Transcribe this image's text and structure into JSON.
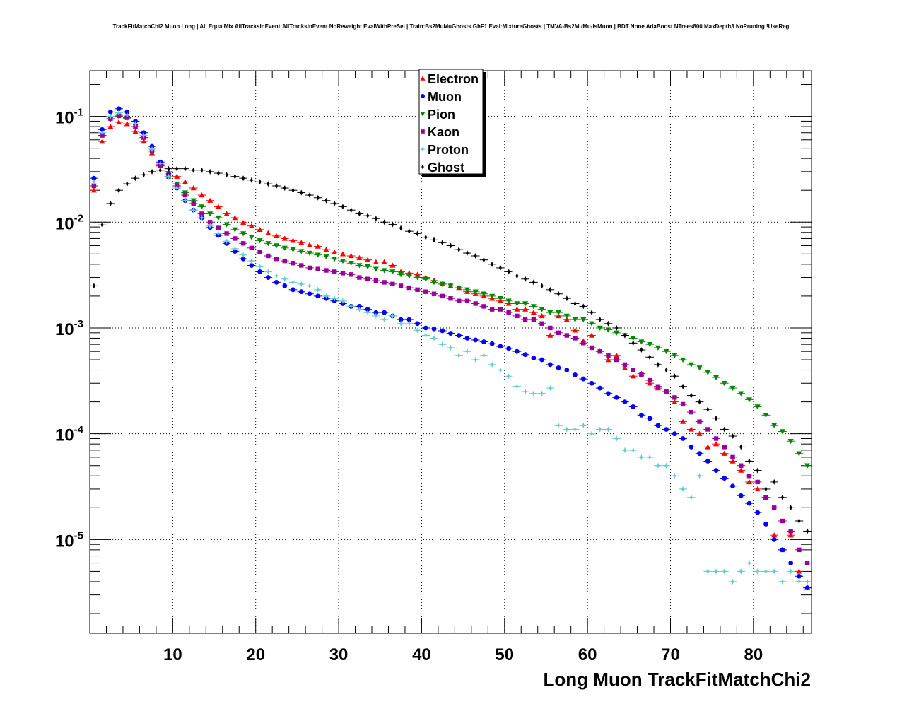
{
  "page_title": "TrackFitMatchChi2 Muon Long | All EqualMix AllTracksInEvent:AllTracksInEvent NoReweight EvalWithPreSel | Train:Bs2MuMuGhosts GhF1 Eval:MixtureGhosts | TMVA-Bs2MuMu-IsMuon | BDT None AdaBoost NTrees800 MaxDepth3 NoPruning !UseReg",
  "chart_data": {
    "type": "scatter",
    "title": "TrackFitMatchChi2 Muon Long | All EqualMix AllTracksInEvent:AllTracksInEvent NoReweight EvalWithPreSel | Train:Bs2MuMuGhosts GhF1 Eval:MixtureGhosts | TMVA-Bs2MuMu-IsMuon | BDT None AdaBoost NTrees800 MaxDepth3 NoPruning !UseReg",
    "xlabel": "Long Muon TrackFitMatchChi2",
    "ylabel": "",
    "xlim": [
      0,
      87
    ],
    "ylim": [
      1.3e-06,
      0.27
    ],
    "yscale": "log",
    "grid": true,
    "legend_position": "top-center",
    "x_ticks": [
      "10",
      "20",
      "30",
      "40",
      "50",
      "60",
      "70",
      "80"
    ],
    "y_ticks": [
      {
        "base": "10",
        "exp": "-1"
      },
      {
        "base": "10",
        "exp": "-2"
      },
      {
        "base": "10",
        "exp": "-3"
      },
      {
        "base": "10",
        "exp": "-4"
      },
      {
        "base": "10",
        "exp": "-5"
      }
    ],
    "bin_width": 1,
    "series": [
      {
        "name": "Electron",
        "color": "#ff0000",
        "marker": "triangle-up",
        "x": [
          0.5,
          1.5,
          2.5,
          3.5,
          4.5,
          5.5,
          6.5,
          7.5,
          8.5,
          9.5,
          10.5,
          11.5,
          12.5,
          13.5,
          14.5,
          15.5,
          16.5,
          17.5,
          18.5,
          19.5,
          20.5,
          21.5,
          22.5,
          23.5,
          24.5,
          25.5,
          26.5,
          27.5,
          28.5,
          29.5,
          30.5,
          31.5,
          32.5,
          33.5,
          34.5,
          35.5,
          36.5,
          37.5,
          38.5,
          39.5,
          40.5,
          41.5,
          42.5,
          43.5,
          44.5,
          45.5,
          46.5,
          47.5,
          48.5,
          49.5,
          50.5,
          51.5,
          52.5,
          53.5,
          54.5,
          55.5,
          56.5,
          57.5,
          58.5,
          59.5,
          60.5,
          61.5,
          62.5,
          63.5,
          64.5,
          65.5,
          66.5,
          67.5,
          68.5,
          69.5,
          70.5,
          71.5,
          72.5,
          73.5,
          74.5,
          75.5,
          76.5,
          77.5,
          78.5,
          79.5,
          80.5,
          81.5,
          82.5,
          83.5,
          84.5,
          85.5,
          86.5
        ],
        "y": [
          0.02,
          0.058,
          0.08,
          0.088,
          0.085,
          0.072,
          0.058,
          0.045,
          0.035,
          0.03,
          0.027,
          0.024,
          0.021,
          0.018,
          0.016,
          0.014,
          0.012,
          0.011,
          0.0099,
          0.0092,
          0.0085,
          0.0079,
          0.0074,
          0.007,
          0.0067,
          0.0064,
          0.0061,
          0.0059,
          0.0055,
          0.0052,
          0.005,
          0.0048,
          0.0046,
          0.0044,
          0.0042,
          0.0042,
          0.0039,
          0.0034,
          0.0033,
          0.0032,
          0.003,
          0.0028,
          0.0026,
          0.0025,
          0.0024,
          0.0022,
          0.0021,
          0.002,
          0.0019,
          0.0018,
          0.0017,
          0.0015,
          0.0015,
          0.0014,
          0.0013,
          0.00085,
          0.0013,
          0.0012,
          0.00095,
          0.00075,
          0.00085,
          0.0006,
          0.0005,
          0.00055,
          0.00042,
          0.00035,
          0.00037,
          0.0003,
          0.00027,
          0.00025,
          0.0002,
          0.00013,
          0.00011,
          0.0001,
          7.5e-05,
          8e-05,
          6.5e-05,
          5.5e-05,
          4.5e-05,
          3.5e-05,
          3e-05,
          2.5e-05,
          1.1e-05,
          8e-06,
          1.1e-05,
          5e-06,
          3.5e-06
        ]
      },
      {
        "name": "Muon",
        "color": "#0000ff",
        "marker": "circle",
        "x": [
          0.5,
          1.5,
          2.5,
          3.5,
          4.5,
          5.5,
          6.5,
          7.5,
          8.5,
          9.5,
          10.5,
          11.5,
          12.5,
          13.5,
          14.5,
          15.5,
          16.5,
          17.5,
          18.5,
          19.5,
          20.5,
          21.5,
          22.5,
          23.5,
          24.5,
          25.5,
          26.5,
          27.5,
          28.5,
          29.5,
          30.5,
          31.5,
          32.5,
          33.5,
          34.5,
          35.5,
          36.5,
          37.5,
          38.5,
          39.5,
          40.5,
          41.5,
          42.5,
          43.5,
          44.5,
          45.5,
          46.5,
          47.5,
          48.5,
          49.5,
          50.5,
          51.5,
          52.5,
          53.5,
          54.5,
          55.5,
          56.5,
          57.5,
          58.5,
          59.5,
          60.5,
          61.5,
          62.5,
          63.5,
          64.5,
          65.5,
          66.5,
          67.5,
          68.5,
          69.5,
          70.5,
          71.5,
          72.5,
          73.5,
          74.5,
          75.5,
          76.5,
          77.5,
          78.5,
          79.5,
          80.5,
          81.5,
          82.5,
          83.5,
          84.5,
          85.5,
          86.5
        ],
        "y": [
          0.026,
          0.075,
          0.11,
          0.118,
          0.11,
          0.09,
          0.07,
          0.052,
          0.037,
          0.028,
          0.021,
          0.016,
          0.013,
          0.011,
          0.0089,
          0.0075,
          0.0063,
          0.0053,
          0.0045,
          0.0039,
          0.0034,
          0.003,
          0.0027,
          0.0025,
          0.0023,
          0.0022,
          0.0021,
          0.002,
          0.0019,
          0.0018,
          0.0017,
          0.0016,
          0.0016,
          0.0015,
          0.0014,
          0.0014,
          0.0013,
          0.0012,
          0.0012,
          0.0011,
          0.001,
          0.00098,
          0.00094,
          0.00089,
          0.00085,
          0.0008,
          0.00077,
          0.00074,
          0.00071,
          0.00067,
          0.00064,
          0.0006,
          0.00056,
          0.00052,
          0.0005,
          0.00045,
          0.00042,
          0.0004,
          0.00036,
          0.00033,
          0.0003,
          0.00027,
          0.00024,
          0.00022,
          0.0002,
          0.00018,
          0.00015,
          0.00014,
          0.00012,
          0.00011,
          0.0001,
          9e-05,
          7.5e-05,
          6.5e-05,
          5.5e-05,
          4.5e-05,
          3.8e-05,
          3.2e-05,
          2.6e-05,
          2.2e-05,
          1.8e-05,
          1.4e-05,
          1e-05,
          8e-06,
          6e-06,
          4.5e-06,
          3.5e-06
        ]
      },
      {
        "name": "Pion",
        "color": "#008800",
        "marker": "triangle-down",
        "x": [
          0.5,
          1.5,
          2.5,
          3.5,
          4.5,
          5.5,
          6.5,
          7.5,
          8.5,
          9.5,
          10.5,
          11.5,
          12.5,
          13.5,
          14.5,
          15.5,
          16.5,
          17.5,
          18.5,
          19.5,
          20.5,
          21.5,
          22.5,
          23.5,
          24.5,
          25.5,
          26.5,
          27.5,
          28.5,
          29.5,
          30.5,
          31.5,
          32.5,
          33.5,
          34.5,
          35.5,
          36.5,
          37.5,
          38.5,
          39.5,
          40.5,
          41.5,
          42.5,
          43.5,
          44.5,
          45.5,
          46.5,
          47.5,
          48.5,
          49.5,
          50.5,
          51.5,
          52.5,
          53.5,
          54.5,
          55.5,
          56.5,
          57.5,
          58.5,
          59.5,
          60.5,
          61.5,
          62.5,
          63.5,
          64.5,
          65.5,
          66.5,
          67.5,
          68.5,
          69.5,
          70.5,
          71.5,
          72.5,
          73.5,
          74.5,
          75.5,
          76.5,
          77.5,
          78.5,
          79.5,
          80.5,
          81.5,
          82.5,
          83.5,
          84.5,
          85.5,
          86.5
        ],
        "y": [
          0.022,
          0.066,
          0.094,
          0.1,
          0.096,
          0.08,
          0.063,
          0.047,
          0.034,
          0.027,
          0.023,
          0.019,
          0.016,
          0.014,
          0.012,
          0.011,
          0.0095,
          0.0085,
          0.0078,
          0.0072,
          0.0067,
          0.0063,
          0.006,
          0.0057,
          0.0055,
          0.0053,
          0.0051,
          0.0049,
          0.0047,
          0.0045,
          0.0043,
          0.0041,
          0.0039,
          0.0038,
          0.0036,
          0.0035,
          0.0034,
          0.0032,
          0.0031,
          0.003,
          0.0029,
          0.0027,
          0.0026,
          0.0025,
          0.0024,
          0.0023,
          0.0022,
          0.0021,
          0.002,
          0.0019,
          0.0018,
          0.0017,
          0.0017,
          0.0016,
          0.0015,
          0.0014,
          0.0014,
          0.0013,
          0.0012,
          0.0012,
          0.0011,
          0.001,
          0.00096,
          0.0009,
          0.00085,
          0.0008,
          0.00074,
          0.0007,
          0.00065,
          0.0006,
          0.00055,
          0.0005,
          0.00045,
          0.00042,
          0.00038,
          0.00034,
          0.0003,
          0.00027,
          0.00024,
          0.00021,
          0.00018,
          0.00015,
          0.00012,
          0.000105,
          8.5e-05,
          6.5e-05,
          5e-05
        ]
      },
      {
        "name": "Kaon",
        "color": "#990099",
        "marker": "square",
        "x": [
          0.5,
          1.5,
          2.5,
          3.5,
          4.5,
          5.5,
          6.5,
          7.5,
          8.5,
          9.5,
          10.5,
          11.5,
          12.5,
          13.5,
          14.5,
          15.5,
          16.5,
          17.5,
          18.5,
          19.5,
          20.5,
          21.5,
          22.5,
          23.5,
          24.5,
          25.5,
          26.5,
          27.5,
          28.5,
          29.5,
          30.5,
          31.5,
          32.5,
          33.5,
          34.5,
          35.5,
          36.5,
          37.5,
          38.5,
          39.5,
          40.5,
          41.5,
          42.5,
          43.5,
          44.5,
          45.5,
          46.5,
          47.5,
          48.5,
          49.5,
          50.5,
          51.5,
          52.5,
          53.5,
          54.5,
          55.5,
          56.5,
          57.5,
          58.5,
          59.5,
          60.5,
          61.5,
          62.5,
          63.5,
          64.5,
          65.5,
          66.5,
          67.5,
          68.5,
          69.5,
          70.5,
          71.5,
          72.5,
          73.5,
          74.5,
          75.5,
          76.5,
          77.5,
          78.5,
          79.5,
          80.5,
          81.5,
          82.5,
          83.5,
          84.5,
          85.5,
          86.5
        ],
        "y": [
          0.022,
          0.066,
          0.095,
          0.101,
          0.097,
          0.08,
          0.063,
          0.047,
          0.034,
          0.027,
          0.022,
          0.018,
          0.015,
          0.012,
          0.01,
          0.0088,
          0.0078,
          0.007,
          0.0063,
          0.0057,
          0.0052,
          0.0048,
          0.0045,
          0.0043,
          0.0041,
          0.0039,
          0.0037,
          0.0036,
          0.0035,
          0.0034,
          0.0033,
          0.0032,
          0.003,
          0.0029,
          0.0028,
          0.0027,
          0.0026,
          0.0025,
          0.0024,
          0.0023,
          0.0022,
          0.0021,
          0.002,
          0.0019,
          0.0018,
          0.0018,
          0.0017,
          0.0016,
          0.0015,
          0.0015,
          0.0014,
          0.0013,
          0.0012,
          0.0012,
          0.0011,
          0.001,
          0.0009,
          0.00085,
          0.0008,
          0.00072,
          0.00065,
          0.0006,
          0.00055,
          0.0005,
          0.00045,
          0.0004,
          0.00036,
          0.00032,
          0.00028,
          0.00025,
          0.00022,
          0.00019,
          0.00016,
          0.00013,
          0.00011,
          9e-05,
          7.5e-05,
          6e-05,
          5e-05,
          4e-05,
          3.5e-05,
          2.5e-05,
          2e-05,
          1.5e-05,
          1.2e-05,
          8e-06,
          6e-06
        ]
      },
      {
        "name": "Proton",
        "color": "#66cccc",
        "marker": "star",
        "x": [
          0.5,
          1.5,
          2.5,
          3.5,
          4.5,
          5.5,
          6.5,
          7.5,
          8.5,
          9.5,
          10.5,
          11.5,
          12.5,
          13.5,
          14.5,
          15.5,
          16.5,
          17.5,
          18.5,
          19.5,
          20.5,
          21.5,
          22.5,
          23.5,
          24.5,
          25.5,
          26.5,
          27.5,
          28.5,
          29.5,
          30.5,
          31.5,
          32.5,
          33.5,
          34.5,
          35.5,
          36.5,
          37.5,
          38.5,
          39.5,
          40.5,
          41.5,
          42.5,
          43.5,
          44.5,
          45.5,
          46.5,
          47.5,
          48.5,
          49.5,
          50.5,
          51.5,
          52.5,
          53.5,
          54.5,
          55.5,
          56.5,
          57.5,
          58.5,
          59.5,
          60.5,
          61.5,
          62.5,
          63.5,
          64.5,
          65.5,
          66.5,
          67.5,
          68.5,
          69.5,
          70.5,
          71.5,
          72.5,
          73.5,
          74.5,
          75.5,
          76.5,
          77.5,
          78.5,
          79.5,
          80.5,
          81.5,
          82.5,
          83.5,
          84.5,
          85.5,
          86.5
        ],
        "y": [
          0.024,
          0.07,
          0.1,
          0.108,
          0.103,
          0.085,
          0.066,
          0.049,
          0.036,
          0.027,
          0.021,
          0.016,
          0.013,
          0.011,
          0.0092,
          0.0078,
          0.0066,
          0.0056,
          0.0049,
          0.0043,
          0.0038,
          0.0034,
          0.0031,
          0.0029,
          0.0027,
          0.0026,
          0.0025,
          0.0023,
          0.002,
          0.0019,
          0.0018,
          0.0016,
          0.0015,
          0.0014,
          0.0013,
          0.0012,
          0.0013,
          0.0011,
          0.0011,
          0.00095,
          0.00085,
          0.0008,
          0.0007,
          0.00065,
          0.00055,
          0.0006,
          0.0005,
          0.00055,
          0.00045,
          0.0004,
          0.00035,
          0.00028,
          0.00025,
          0.00024,
          0.00024,
          0.00027,
          0.00012,
          0.00011,
          0.00011,
          0.00012,
          0.0001,
          0.00011,
          0.00011,
          9e-05,
          7e-05,
          7e-05,
          6e-05,
          6e-05,
          5e-05,
          5e-05,
          4e-05,
          3e-05,
          2.5e-05,
          4e-05,
          5e-06,
          5e-06,
          5e-06,
          4e-06,
          5e-06,
          6e-06,
          5e-06,
          5e-06,
          5e-06,
          4e-06,
          5e-06,
          4e-06,
          4e-06
        ]
      },
      {
        "name": "Ghost",
        "color": "#000000",
        "marker": "cross",
        "x": [
          0.5,
          1.5,
          2.5,
          3.5,
          4.5,
          5.5,
          6.5,
          7.5,
          8.5,
          9.5,
          10.5,
          11.5,
          12.5,
          13.5,
          14.5,
          15.5,
          16.5,
          17.5,
          18.5,
          19.5,
          20.5,
          21.5,
          22.5,
          23.5,
          24.5,
          25.5,
          26.5,
          27.5,
          28.5,
          29.5,
          30.5,
          31.5,
          32.5,
          33.5,
          34.5,
          35.5,
          36.5,
          37.5,
          38.5,
          39.5,
          40.5,
          41.5,
          42.5,
          43.5,
          44.5,
          45.5,
          46.5,
          47.5,
          48.5,
          49.5,
          50.5,
          51.5,
          52.5,
          53.5,
          54.5,
          55.5,
          56.5,
          57.5,
          58.5,
          59.5,
          60.5,
          61.5,
          62.5,
          63.5,
          64.5,
          65.5,
          66.5,
          67.5,
          68.5,
          69.5,
          70.5,
          71.5,
          72.5,
          73.5,
          74.5,
          75.5,
          76.5,
          77.5,
          78.5,
          79.5,
          80.5,
          81.5,
          82.5,
          83.5,
          84.5,
          85.5,
          86.5
        ],
        "y": [
          0.0025,
          0.0094,
          0.015,
          0.02,
          0.023,
          0.026,
          0.028,
          0.03,
          0.031,
          0.032,
          0.032,
          0.032,
          0.031,
          0.031,
          0.03,
          0.029,
          0.028,
          0.027,
          0.026,
          0.025,
          0.024,
          0.023,
          0.022,
          0.021,
          0.02,
          0.019,
          0.018,
          0.017,
          0.016,
          0.015,
          0.014,
          0.013,
          0.012,
          0.0115,
          0.0108,
          0.01,
          0.0095,
          0.0088,
          0.0082,
          0.0078,
          0.0072,
          0.0068,
          0.0064,
          0.006,
          0.0055,
          0.0051,
          0.0048,
          0.0044,
          0.004,
          0.0037,
          0.0034,
          0.0031,
          0.0029,
          0.0027,
          0.0025,
          0.0023,
          0.0021,
          0.0019,
          0.0017,
          0.0016,
          0.0014,
          0.0012,
          0.0011,
          0.001,
          0.00085,
          0.00072,
          0.00062,
          0.00053,
          0.00045,
          0.0004,
          0.00035,
          0.00028,
          0.00023,
          0.0002,
          0.00017,
          0.00014,
          0.00011,
          9.5e-05,
          7.5e-05,
          5.5e-05,
          4.5e-05,
          3e-05,
          3.5e-05,
          2.5e-05,
          2e-05,
          1.5e-05,
          1.2e-05
        ]
      }
    ]
  }
}
